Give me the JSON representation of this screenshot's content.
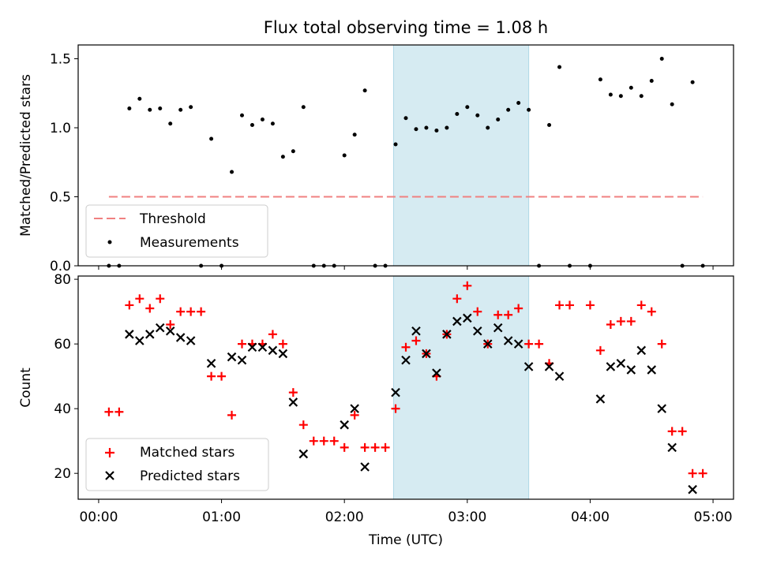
{
  "title": "Flux total observing time = 1.08 h",
  "xlabel": "Time (UTC)",
  "x_ticks": [
    "00:00",
    "01:00",
    "02:00",
    "03:00",
    "04:00",
    "05:00"
  ],
  "colors": {
    "threshold": "#f08080",
    "measurement": "#000000",
    "matched": "#ff0000",
    "predicted": "#000000",
    "shade": "#add8e6"
  },
  "chart_data": [
    {
      "type": "scatter",
      "ylabel": "Matched/Predicted stars",
      "xlim": [
        "-00:10",
        "05:10"
      ],
      "ylim": [
        0,
        1.6
      ],
      "y_ticks": [
        "0.0",
        "0.5",
        "1.0",
        "1.5"
      ],
      "grid": false,
      "legend": "lower-left",
      "shaded_span": {
        "x": [
          "02:24",
          "03:30"
        ]
      },
      "threshold": {
        "name": "Threshold",
        "y": 0.5,
        "x": [
          "00:05",
          "04:55"
        ]
      },
      "series": [
        {
          "name": "Measurements",
          "points": [
            [
              "00:05",
              0.0
            ],
            [
              "00:10",
              0.0
            ],
            [
              "00:15",
              1.14
            ],
            [
              "00:20",
              1.21
            ],
            [
              "00:25",
              1.13
            ],
            [
              "00:30",
              1.14
            ],
            [
              "00:35",
              1.03
            ],
            [
              "00:40",
              1.13
            ],
            [
              "00:45",
              1.15
            ],
            [
              "00:50",
              0.0
            ],
            [
              "00:55",
              0.92
            ],
            [
              "01:00",
              0.0
            ],
            [
              "01:05",
              0.68
            ],
            [
              "01:10",
              1.09
            ],
            [
              "01:15",
              1.02
            ],
            [
              "01:20",
              1.06
            ],
            [
              "01:25",
              1.03
            ],
            [
              "01:30",
              0.79
            ],
            [
              "01:35",
              0.83
            ],
            [
              "01:40",
              1.15
            ],
            [
              "01:45",
              0.0
            ],
            [
              "01:50",
              0.0
            ],
            [
              "01:55",
              0.0
            ],
            [
              "02:00",
              0.8
            ],
            [
              "02:05",
              0.95
            ],
            [
              "02:10",
              1.27
            ],
            [
              "02:15",
              0.0
            ],
            [
              "02:20",
              0.0
            ],
            [
              "02:25",
              0.88
            ],
            [
              "02:30",
              1.07
            ],
            [
              "02:35",
              0.99
            ],
            [
              "02:40",
              1.0
            ],
            [
              "02:45",
              0.98
            ],
            [
              "02:50",
              1.0
            ],
            [
              "02:55",
              1.1
            ],
            [
              "03:00",
              1.15
            ],
            [
              "03:05",
              1.09
            ],
            [
              "03:10",
              1.0
            ],
            [
              "03:15",
              1.06
            ],
            [
              "03:20",
              1.13
            ],
            [
              "03:25",
              1.18
            ],
            [
              "03:30",
              1.13
            ],
            [
              "03:35",
              0.0
            ],
            [
              "03:40",
              1.02
            ],
            [
              "03:45",
              1.44
            ],
            [
              "03:50",
              0.0
            ],
            [
              "04:00",
              0.0
            ],
            [
              "04:05",
              1.35
            ],
            [
              "04:10",
              1.24
            ],
            [
              "04:15",
              1.23
            ],
            [
              "04:20",
              1.29
            ],
            [
              "04:25",
              1.23
            ],
            [
              "04:30",
              1.34
            ],
            [
              "04:35",
              1.5
            ],
            [
              "04:40",
              1.17
            ],
            [
              "04:45",
              0.0
            ],
            [
              "04:50",
              1.33
            ],
            [
              "04:55",
              0.0
            ]
          ]
        }
      ]
    },
    {
      "type": "scatter",
      "ylabel": "Count",
      "xlim": [
        "-00:10",
        "05:10"
      ],
      "ylim": [
        12,
        81
      ],
      "y_ticks": [
        "20",
        "40",
        "60",
        "80"
      ],
      "grid": false,
      "legend": "lower-left",
      "shaded_span": {
        "x": [
          "02:24",
          "03:30"
        ]
      },
      "series": [
        {
          "name": "Matched stars",
          "points": [
            [
              "00:05",
              39
            ],
            [
              "00:10",
              39
            ],
            [
              "00:15",
              72
            ],
            [
              "00:20",
              74
            ],
            [
              "00:25",
              71
            ],
            [
              "00:30",
              74
            ],
            [
              "00:35",
              66
            ],
            [
              "00:40",
              70
            ],
            [
              "00:45",
              70
            ],
            [
              "00:50",
              70
            ],
            [
              "00:55",
              50
            ],
            [
              "01:00",
              50
            ],
            [
              "01:05",
              38
            ],
            [
              "01:10",
              60
            ],
            [
              "01:15",
              60
            ],
            [
              "01:20",
              60
            ],
            [
              "01:25",
              63
            ],
            [
              "01:30",
              60
            ],
            [
              "01:35",
              45
            ],
            [
              "01:40",
              35
            ],
            [
              "01:45",
              30
            ],
            [
              "01:50",
              30
            ],
            [
              "01:55",
              30
            ],
            [
              "02:00",
              28
            ],
            [
              "02:05",
              38
            ],
            [
              "02:10",
              28
            ],
            [
              "02:15",
              28
            ],
            [
              "02:20",
              28
            ],
            [
              "02:25",
              40
            ],
            [
              "02:30",
              59
            ],
            [
              "02:35",
              61
            ],
            [
              "02:40",
              57
            ],
            [
              "02:45",
              50
            ],
            [
              "02:50",
              63
            ],
            [
              "02:55",
              74
            ],
            [
              "03:00",
              78
            ],
            [
              "03:05",
              70
            ],
            [
              "03:10",
              60
            ],
            [
              "03:15",
              69
            ],
            [
              "03:20",
              69
            ],
            [
              "03:25",
              71
            ],
            [
              "03:30",
              60
            ],
            [
              "03:35",
              60
            ],
            [
              "03:40",
              54
            ],
            [
              "03:45",
              72
            ],
            [
              "03:50",
              72
            ],
            [
              "04:00",
              72
            ],
            [
              "04:05",
              58
            ],
            [
              "04:10",
              66
            ],
            [
              "04:15",
              67
            ],
            [
              "04:20",
              67
            ],
            [
              "04:25",
              72
            ],
            [
              "04:30",
              70
            ],
            [
              "04:35",
              60
            ],
            [
              "04:40",
              33
            ],
            [
              "04:45",
              33
            ],
            [
              "04:50",
              20
            ],
            [
              "04:55",
              20
            ]
          ]
        },
        {
          "name": "Predicted stars",
          "points": [
            [
              "00:15",
              63
            ],
            [
              "00:20",
              61
            ],
            [
              "00:25",
              63
            ],
            [
              "00:30",
              65
            ],
            [
              "00:35",
              64
            ],
            [
              "00:40",
              62
            ],
            [
              "00:45",
              61
            ],
            [
              "00:55",
              54
            ],
            [
              "01:05",
              56
            ],
            [
              "01:10",
              55
            ],
            [
              "01:15",
              59
            ],
            [
              "01:20",
              59
            ],
            [
              "01:25",
              58
            ],
            [
              "01:30",
              57
            ],
            [
              "01:35",
              42
            ],
            [
              "01:40",
              26
            ],
            [
              "02:00",
              35
            ],
            [
              "02:05",
              40
            ],
            [
              "02:10",
              22
            ],
            [
              "02:25",
              45
            ],
            [
              "02:30",
              55
            ],
            [
              "02:35",
              64
            ],
            [
              "02:40",
              57
            ],
            [
              "02:45",
              51
            ],
            [
              "02:50",
              63
            ],
            [
              "02:55",
              67
            ],
            [
              "03:00",
              68
            ],
            [
              "03:05",
              64
            ],
            [
              "03:10",
              60
            ],
            [
              "03:15",
              65
            ],
            [
              "03:20",
              61
            ],
            [
              "03:25",
              60
            ],
            [
              "03:30",
              53
            ],
            [
              "03:40",
              53
            ],
            [
              "03:45",
              50
            ],
            [
              "04:05",
              43
            ],
            [
              "04:10",
              53
            ],
            [
              "04:15",
              54
            ],
            [
              "04:20",
              52
            ],
            [
              "04:25",
              58
            ],
            [
              "04:30",
              52
            ],
            [
              "04:35",
              40
            ],
            [
              "04:40",
              28
            ],
            [
              "04:50",
              15
            ]
          ]
        }
      ]
    }
  ]
}
